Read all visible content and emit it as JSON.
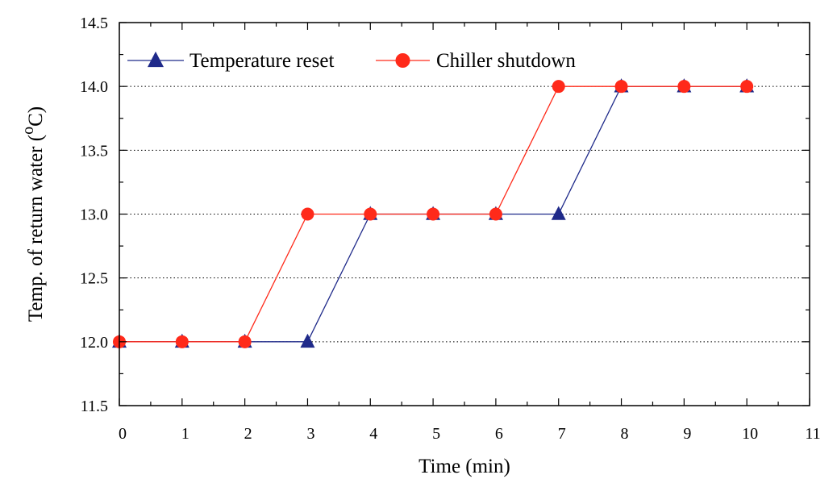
{
  "chart_data": {
    "type": "line",
    "title": "",
    "xlabel": "Time (min)",
    "ylabel": {
      "main": "Temp. of return water (",
      "superscript": "o",
      "unit": "C)"
    },
    "xlim": [
      0,
      11
    ],
    "ylim": [
      11.5,
      14.5
    ],
    "x_ticks": [
      "0",
      "1",
      "2",
      "3",
      "4",
      "5",
      "6",
      "7",
      "8",
      "9",
      "10",
      "11"
    ],
    "y_ticks": [
      "11.5",
      "12.0",
      "12.5",
      "13.0",
      "13.5",
      "14.0",
      "14.5"
    ],
    "grid": "horizontal dotted",
    "legend_position": "top-left",
    "series": [
      {
        "name": "Temperature reset",
        "color": "#1f2a8a",
        "marker": "triangle",
        "x": [
          0,
          1,
          2,
          3,
          4,
          5,
          6,
          7,
          8,
          9,
          10
        ],
        "y": [
          12.0,
          12.0,
          12.0,
          12.0,
          13.0,
          13.0,
          13.0,
          13.0,
          14.0,
          14.0,
          14.0
        ]
      },
      {
        "name": "Chiller shutdown",
        "color": "#ff2a1a",
        "marker": "circle",
        "x": [
          0,
          1,
          2,
          3,
          4,
          5,
          6,
          7,
          8,
          9,
          10
        ],
        "y": [
          12.0,
          12.0,
          12.0,
          13.0,
          13.0,
          13.0,
          13.0,
          14.0,
          14.0,
          14.0,
          14.0
        ]
      }
    ]
  }
}
